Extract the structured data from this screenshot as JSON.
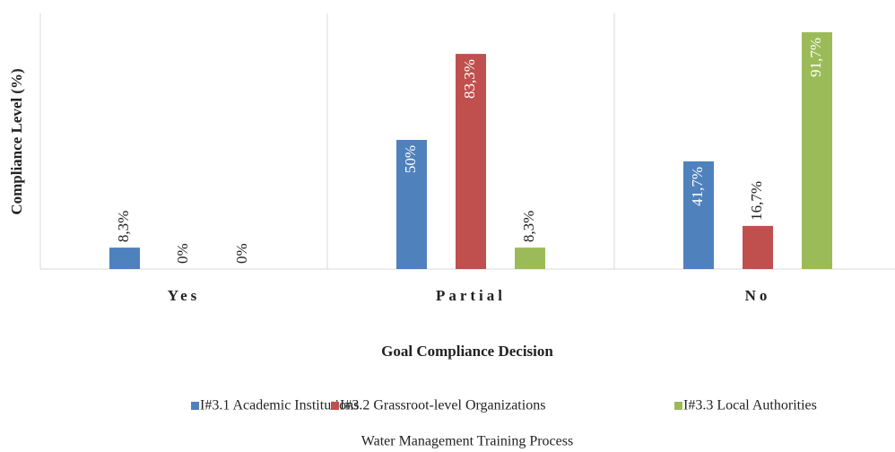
{
  "chart_data": {
    "type": "bar",
    "y_label": "Compliance Level  (%)",
    "x_label": "Goal Compliance Decision",
    "subtitle": "Water Management Training Process",
    "categories": [
      "Yes",
      "Partial",
      "No"
    ],
    "series": [
      {
        "name": "I#3.1 Academic Institutions",
        "color": "#4f81bd",
        "values": [
          8.3,
          50,
          41.7
        ],
        "value_labels": [
          "8,3%",
          "50%",
          "41,7%"
        ]
      },
      {
        "name": "I#3.2 Grassroot-level Organizations",
        "color": "#c0504d",
        "values": [
          0,
          83.3,
          16.7
        ],
        "value_labels": [
          "0%",
          "83,3%",
          "16,7%"
        ]
      },
      {
        "name": "I#3.3 Local Authorities",
        "color": "#9bbb59",
        "values": [
          0,
          8.3,
          91.7
        ],
        "value_labels": [
          "0%",
          "8,3%",
          "91,7%"
        ]
      }
    ],
    "ylim": [
      0,
      100
    ],
    "legend": "bottom"
  }
}
